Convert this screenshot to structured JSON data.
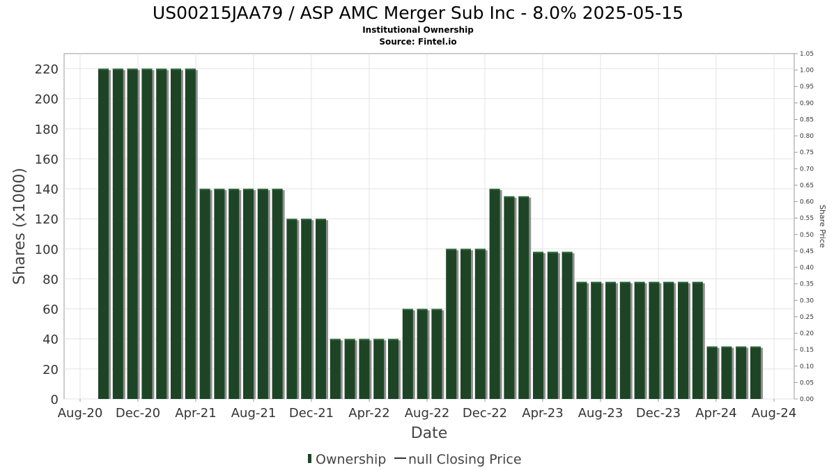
{
  "chart_data": {
    "type": "bar",
    "title": "US00215JAA79 / ASP AMC Merger Sub Inc - 8.0% 2025-05-15",
    "subtitle_lines": [
      "Institutional Ownership",
      "Source: Fintel.io"
    ],
    "xlabel": "Date",
    "ylabel": "Shares (x1000)",
    "y2label": "Share Price",
    "ylim": [
      0,
      230
    ],
    "y2lim": [
      0,
      1.05
    ],
    "yticks": [
      "0",
      "20",
      "40",
      "60",
      "80",
      "100",
      "120",
      "140",
      "160",
      "180",
      "200",
      "220"
    ],
    "y2ticks": [
      "0.00",
      "0.05",
      "0.10",
      "0.15",
      "0.20",
      "0.25",
      "0.30",
      "0.35",
      "0.40",
      "0.45",
      "0.50",
      "0.55",
      "0.60",
      "0.65",
      "0.70",
      "0.75",
      "0.80",
      "0.85",
      "0.90",
      "0.95",
      "1.00",
      "1.05"
    ],
    "xticks": [
      "Aug-20",
      "Dec-20",
      "Apr-21",
      "Aug-21",
      "Dec-21",
      "Apr-22",
      "Aug-22",
      "Dec-22",
      "Apr-23",
      "Aug-23",
      "Dec-23",
      "Apr-24",
      "Aug-24"
    ],
    "grid": true,
    "legend_position": "bottom",
    "series": [
      {
        "name": "Ownership",
        "color": "#1e4426",
        "values": [
          220,
          220,
          220,
          220,
          220,
          220,
          220,
          140,
          140,
          140,
          140,
          140,
          140,
          120,
          120,
          120,
          40,
          40,
          40,
          40,
          40,
          60,
          60,
          60,
          100,
          100,
          100,
          140,
          135,
          135,
          98,
          98,
          98,
          78,
          78,
          78,
          78,
          78,
          78,
          78,
          78,
          78,
          35,
          35,
          35,
          35
        ]
      },
      {
        "name": "null Closing Price",
        "color": "#333333",
        "values": []
      }
    ]
  }
}
